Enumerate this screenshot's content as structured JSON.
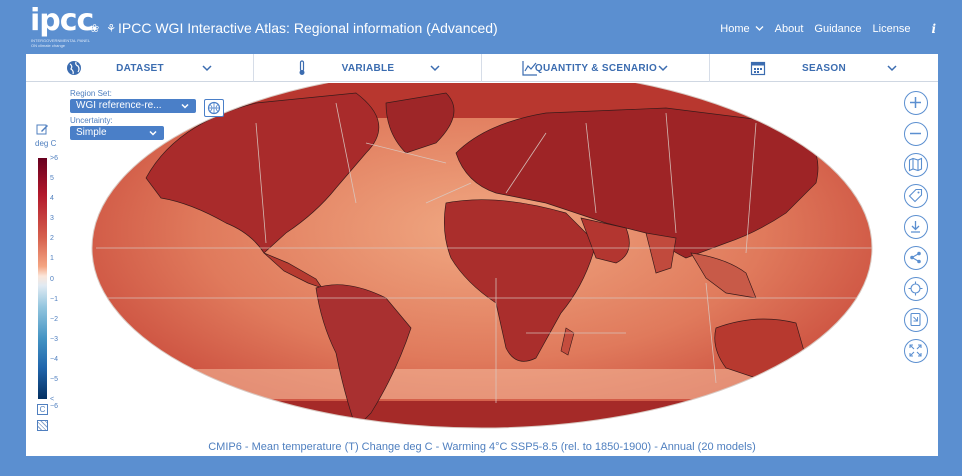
{
  "header": {
    "logo": "ipcc",
    "logo_sub": "INTERGOVERNMENTAL PANEL ON climate change",
    "un_icons": "❀ ⚘",
    "title": "IPCC WGI Interactive Atlas: Regional information (Advanced)",
    "nav": {
      "home": "Home",
      "about": "About",
      "guidance": "Guidance",
      "license": "License",
      "info": "i"
    }
  },
  "menubar": {
    "dataset": "DATASET",
    "variable": "VARIABLE",
    "quantity": "QUANTITY & SCENARIO",
    "season": "SEASON"
  },
  "controls": {
    "region_set_label": "Region Set:",
    "region_set_value": "WGI reference-re...",
    "uncertainty_label": "Uncertainty:",
    "uncertainty_value": "Simple"
  },
  "legend": {
    "unit": "deg C",
    "ticks": [
      ">6",
      "5",
      "4",
      "3",
      "2",
      "1",
      "0",
      "−1",
      "−2",
      "−3",
      "−4",
      "−5",
      "< −6"
    ],
    "clip_button": "C"
  },
  "caption": "CMIP6 - Mean temperature (T) Change deg C - Warming 4°C SSP5-8.5 (rel. to 1850-1900) - Annual (20 models)",
  "colors": {
    "accent": "#5b8fd0",
    "button": "#4a7fc8",
    "warm_high": "#67001f",
    "warm_mid": "#d6604d",
    "warm_low": "#f4a582"
  }
}
